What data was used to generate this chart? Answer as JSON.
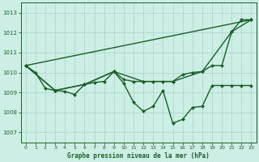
{
  "title": "Graphe pression niveau de la mer (hPa)",
  "background_color": "#cceee4",
  "grid_color": "#aad4c8",
  "line_color": "#1a5e2a",
  "xlim": [
    -0.5,
    23.5
  ],
  "ylim": [
    1006.5,
    1013.5
  ],
  "yticks": [
    1007,
    1008,
    1009,
    1010,
    1011,
    1012,
    1013
  ],
  "xticks": [
    0,
    1,
    2,
    3,
    4,
    5,
    6,
    7,
    8,
    9,
    10,
    11,
    12,
    13,
    14,
    15,
    16,
    17,
    18,
    19,
    20,
    21,
    22,
    23
  ],
  "series": [
    {
      "x": [
        0,
        1,
        2,
        3,
        4,
        5,
        6,
        7,
        8,
        9,
        10,
        11,
        12,
        13,
        14,
        15,
        16,
        17,
        18,
        19,
        20,
        21,
        22,
        23
      ],
      "y": [
        1010.35,
        1010.0,
        1009.2,
        1009.1,
        1009.05,
        1008.9,
        1009.4,
        1009.5,
        1009.55,
        1010.05,
        1009.65,
        1009.55,
        1009.55,
        1009.55,
        1009.55,
        1009.55,
        1009.9,
        1010.0,
        1010.05,
        1010.35,
        1010.35,
        1012.05,
        1012.65,
        1012.65
      ],
      "marker": "D",
      "markersize": 2.0,
      "linewidth": 1.0
    },
    {
      "x": [
        0,
        3,
        6,
        9,
        12,
        15,
        18,
        21,
        23
      ],
      "y": [
        1010.35,
        1009.1,
        1009.4,
        1010.05,
        1009.55,
        1009.55,
        1010.05,
        1012.05,
        1012.65
      ],
      "marker": "D",
      "markersize": 2.0,
      "linewidth": 1.0
    },
    {
      "x": [
        0,
        3,
        6,
        9,
        10,
        11,
        12,
        13,
        14,
        15,
        16,
        17,
        18,
        19,
        20,
        21,
        22,
        23
      ],
      "y": [
        1010.35,
        1009.1,
        1009.4,
        1010.05,
        1009.45,
        1008.5,
        1008.05,
        1008.3,
        1009.1,
        1007.45,
        1007.65,
        1008.25,
        1008.3,
        1009.35,
        1009.35,
        1009.35,
        1009.35,
        1009.35
      ],
      "marker": "D",
      "markersize": 2.0,
      "linewidth": 1.0
    },
    {
      "x": [
        0,
        23
      ],
      "y": [
        1010.35,
        1012.65
      ],
      "marker": null,
      "markersize": 0,
      "linewidth": 1.0
    }
  ]
}
